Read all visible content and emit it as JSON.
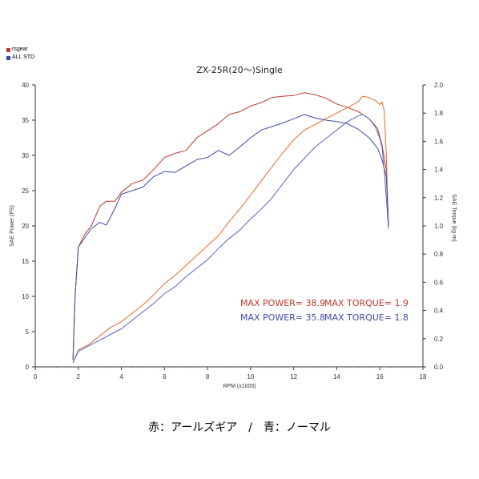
{
  "legend": [
    {
      "label": "rsgear",
      "color": "#c0392b"
    },
    {
      "label": "ALL STD",
      "color": "#3f4aa8"
    }
  ],
  "caption": "赤：アールズギア　/　青：ノーマル",
  "chart_data": {
    "type": "line",
    "title": "ZX-25R(20～)Single",
    "xlabel": "RPM (x1000)",
    "ylabel_left": "SAE Power (PS)",
    "ylabel_right": "SAE Torque (kg-m)",
    "xlim": [
      0,
      18
    ],
    "ylim_left": [
      0,
      40
    ],
    "ylim_right": [
      0,
      2.0
    ],
    "x_ticks": [
      0,
      2,
      4,
      6,
      8,
      10,
      12,
      14,
      16,
      18
    ],
    "y_left_ticks": [
      0,
      5,
      10,
      15,
      20,
      25,
      30,
      35,
      40
    ],
    "y_right_ticks": [
      0.0,
      0.2,
      0.4,
      0.6,
      0.8,
      1.0,
      1.2,
      1.4,
      1.6,
      1.8,
      2.0
    ],
    "grid": false,
    "series": [
      {
        "name": "rsgear Power",
        "axis": "left",
        "color": "#c0392b",
        "x": [
          1.75,
          1.85,
          2.0,
          2.3,
          2.6,
          3.0,
          3.3,
          3.7,
          4.0,
          4.5,
          5.0,
          5.5,
          6.0,
          6.5,
          7.0,
          7.5,
          8.0,
          8.5,
          9.0,
          9.5,
          10.0,
          10.5,
          11.0,
          11.5,
          12.0,
          12.5,
          13.0,
          13.5,
          14.0,
          14.5,
          15.0,
          15.5,
          15.9,
          16.1,
          16.3,
          16.4
        ],
        "y": [
          1,
          10,
          17,
          18.8,
          20,
          22.8,
          23.5,
          23.5,
          24.8,
          26,
          26.5,
          28,
          29.7,
          30.3,
          30.7,
          32.5,
          33.5,
          34.5,
          35.8,
          36.2,
          37,
          37.5,
          38.2,
          38.4,
          38.5,
          38.9,
          38.6,
          38.1,
          37.3,
          36.8,
          36.2,
          35.2,
          33.8,
          31.5,
          28.0,
          20.0
        ]
      },
      {
        "name": "rsgear Torque",
        "axis": "right",
        "color": "#e8692d",
        "x": [
          1.75,
          2.0,
          2.5,
          3.0,
          3.5,
          4.0,
          4.5,
          5.0,
          5.5,
          6.0,
          6.5,
          7.0,
          7.5,
          8.0,
          8.5,
          9.0,
          9.5,
          10.0,
          10.5,
          11.0,
          11.5,
          12.0,
          12.5,
          13.0,
          13.5,
          14.0,
          14.5,
          15.0,
          15.2,
          15.5,
          15.8,
          16.0,
          16.1,
          16.2,
          16.3,
          16.4
        ],
        "y": [
          0.03,
          0.12,
          0.16,
          0.22,
          0.28,
          0.32,
          0.38,
          0.44,
          0.51,
          0.59,
          0.65,
          0.72,
          0.79,
          0.86,
          0.93,
          1.03,
          1.12,
          1.22,
          1.32,
          1.42,
          1.52,
          1.61,
          1.68,
          1.72,
          1.76,
          1.8,
          1.84,
          1.88,
          1.92,
          1.91,
          1.89,
          1.86,
          1.88,
          1.82,
          1.5,
          0.98
        ]
      },
      {
        "name": "ALL STD Power",
        "axis": "left",
        "color": "#3f4aa8",
        "x": [
          1.75,
          1.85,
          2.0,
          2.3,
          2.6,
          3.0,
          3.3,
          3.7,
          4.0,
          4.5,
          5.0,
          5.5,
          6.0,
          6.5,
          7.0,
          7.5,
          8.0,
          8.5,
          9.0,
          9.5,
          10.0,
          10.5,
          11.0,
          11.5,
          12.0,
          12.5,
          13.0,
          13.5,
          14.0,
          14.5,
          15.0,
          15.5,
          15.9,
          16.1,
          16.3,
          16.4
        ],
        "y": [
          1,
          10,
          17,
          18.3,
          19.6,
          20.5,
          20.1,
          22.5,
          24.5,
          25,
          25.5,
          27,
          27.7,
          27.6,
          28.5,
          29.4,
          29.7,
          30.7,
          30,
          31.2,
          32.5,
          33.6,
          34.1,
          34.6,
          35.2,
          35.8,
          35.3,
          35.0,
          34.8,
          34.5,
          33.7,
          32.5,
          31.0,
          29.4,
          27.0,
          20.0
        ]
      },
      {
        "name": "ALL STD Torque",
        "axis": "right",
        "color": "#5a63c8",
        "x": [
          1.75,
          2.0,
          2.5,
          3.0,
          3.5,
          4.0,
          4.5,
          5.0,
          5.5,
          6.0,
          6.5,
          7.0,
          7.5,
          8.0,
          8.5,
          9.0,
          9.5,
          10.0,
          10.5,
          11.0,
          11.5,
          12.0,
          12.5,
          13.0,
          13.5,
          14.0,
          14.5,
          15.0,
          15.2,
          15.5,
          15.8,
          16.0,
          16.1,
          16.2,
          16.3,
          16.4
        ],
        "y": [
          0.03,
          0.11,
          0.15,
          0.19,
          0.23,
          0.27,
          0.33,
          0.39,
          0.45,
          0.52,
          0.57,
          0.64,
          0.7,
          0.76,
          0.84,
          0.91,
          0.97,
          1.05,
          1.12,
          1.2,
          1.3,
          1.4,
          1.48,
          1.56,
          1.62,
          1.68,
          1.74,
          1.78,
          1.79,
          1.76,
          1.7,
          1.62,
          1.56,
          1.4,
          1.2,
          0.98
        ]
      }
    ],
    "annotations": [
      {
        "text": "MAX POWER= 38.9",
        "color": "#c0392b"
      },
      {
        "text": "MAX TORQUE= 1.9",
        "color": "#c0392b"
      },
      {
        "text": "MAX POWER= 35.8",
        "color": "#3f4aa8"
      },
      {
        "text": "MAX TORQUE= 1.8",
        "color": "#3f4aa8"
      }
    ]
  }
}
